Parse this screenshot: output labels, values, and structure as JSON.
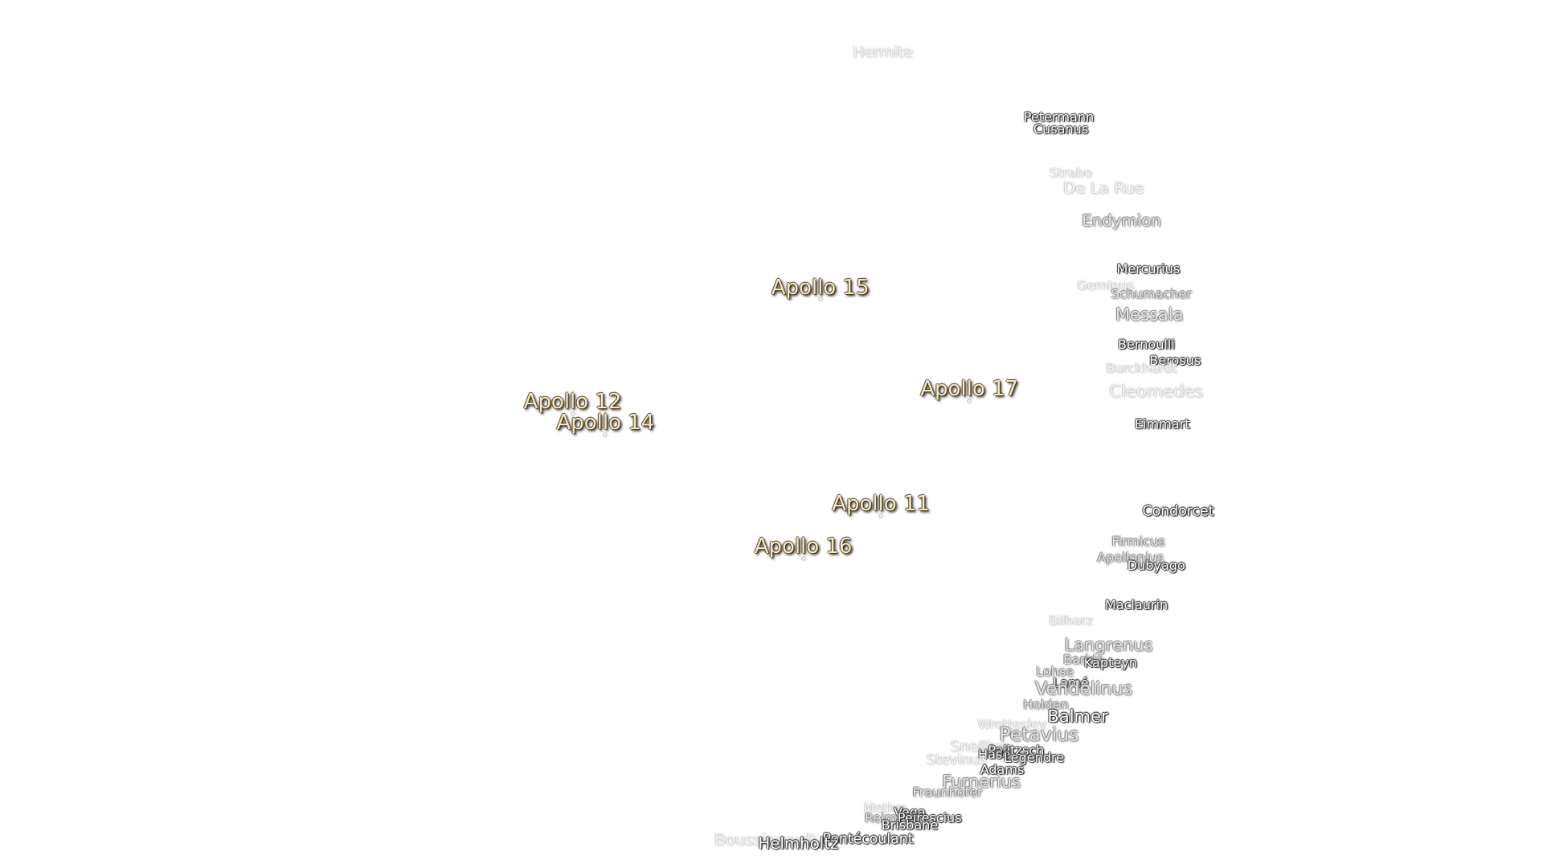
{
  "labels": [
    "Hermite",
    "Petermann",
    "Cusanus",
    "Strabo",
    "De La Rue",
    "Endymion",
    "Mercurius",
    "Geminus",
    "Schumacher",
    "Messala",
    "Bernoulli",
    "Berosus",
    "Burckhardt",
    "Cleomedes",
    "Eimmart",
    "Condorcet",
    "Firmicus",
    "Apollonius",
    "Dubyago",
    "Maclaurin",
    "Bilharz",
    "Langrenus",
    "Barkla",
    "Kapteyn",
    "Lohse",
    "Lamé",
    "Vendelinus",
    "Holden",
    "Balmer",
    "Wrottesley",
    "Petavius",
    "Snellius",
    "Palitzsch",
    "Hase",
    "Legendre",
    "Stevinus",
    "Adams",
    "Furnerius",
    "Fraunhofer",
    "Metius",
    "Vega",
    "Reimarus",
    "Peirescius",
    "Brisbane",
    "Pontécoulant",
    "Boussingault",
    "Helmholtz"
  ],
  "apollo_sites": [
    "Apollo 15",
    "Apollo 12",
    "Apollo 14",
    "Apollo 17",
    "Apollo 11",
    "Apollo 16"
  ]
}
